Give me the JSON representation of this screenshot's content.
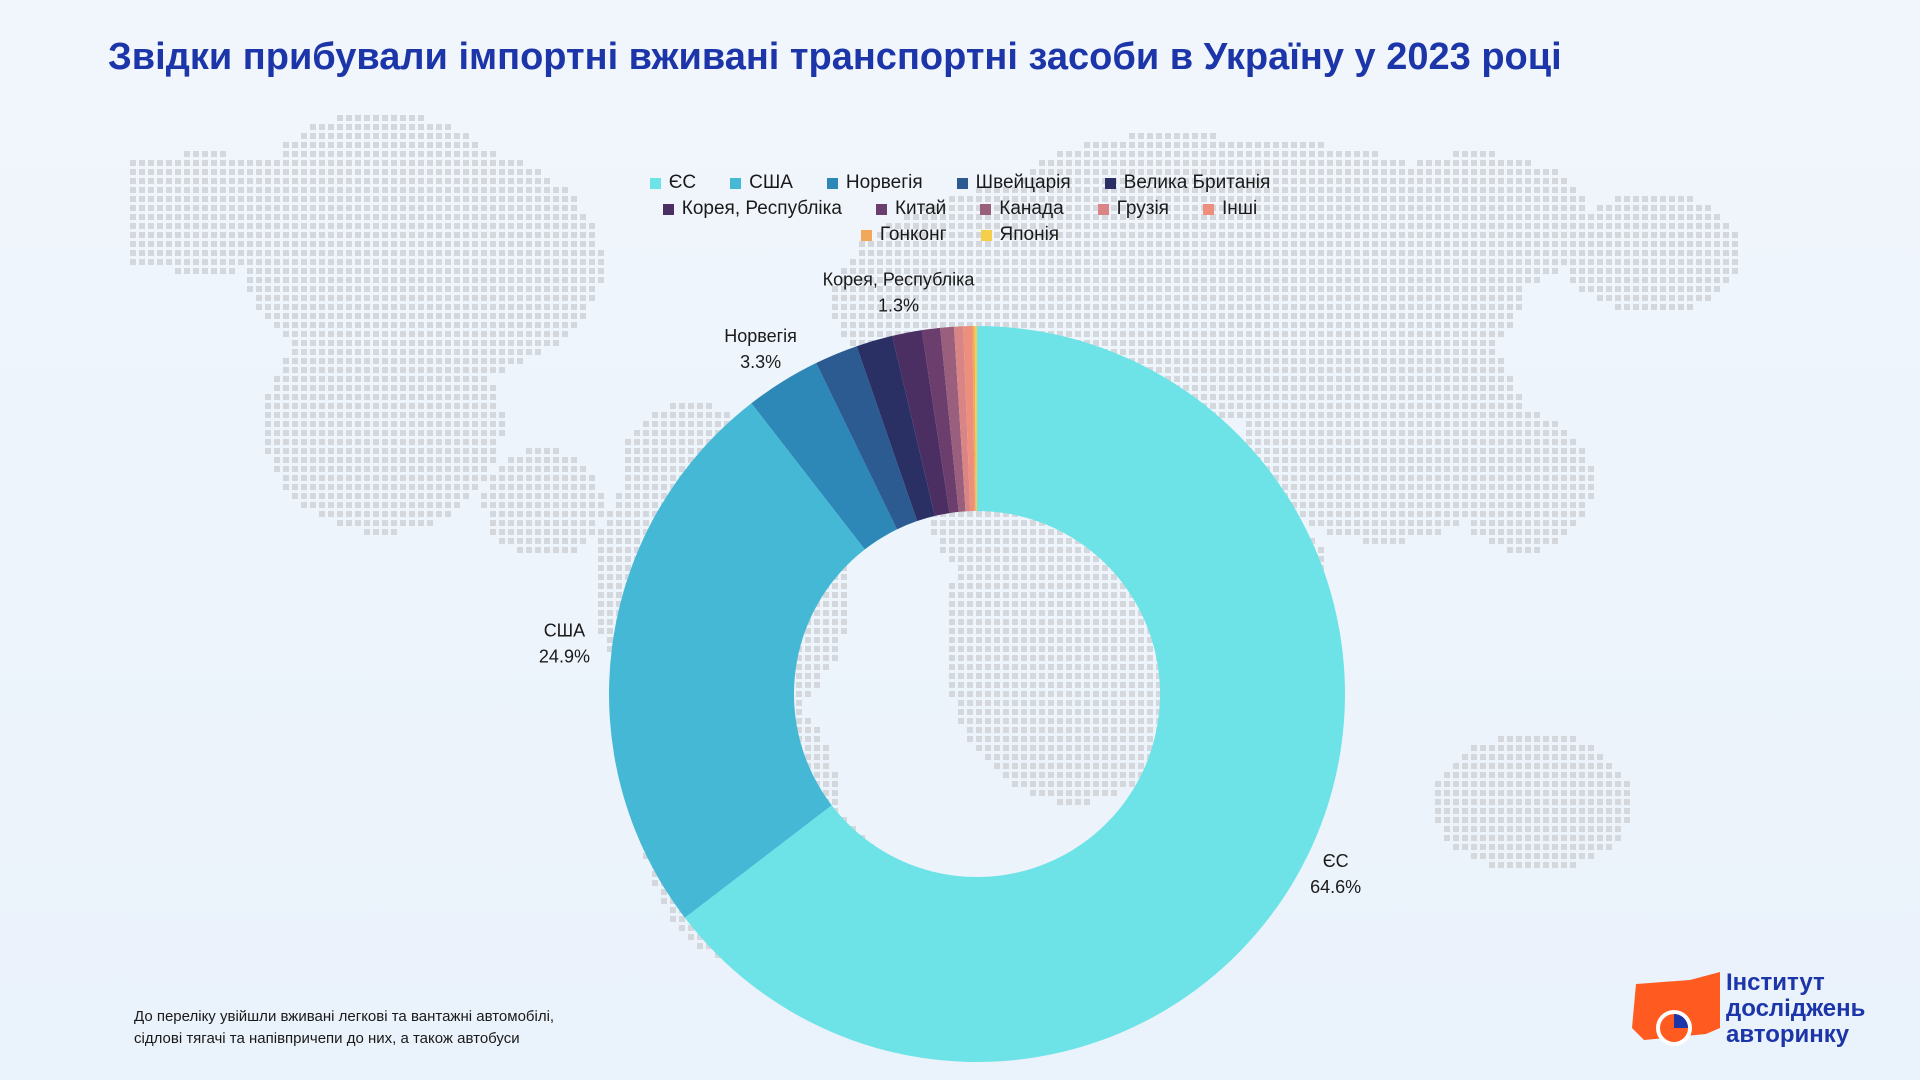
{
  "title": "Звідки прибували імпортні вживані транспортні засоби в Україну у 2023 році",
  "footnote": {
    "line1": "До переліку увійшли вживані легкові та вантажні автомобілі,",
    "line2": "сідлові тягачі та напівпричепи до них, а також автобуси"
  },
  "logo": {
    "line1": "Інститут",
    "line2": "досліджень",
    "line3": "авторинку"
  },
  "chart_data": {
    "type": "pie",
    "subtype": "donut",
    "legend_position": "top",
    "categories": [
      "ЄС",
      "США",
      "Норвегія",
      "Швейцарія",
      "Велика Британія",
      "Корея, Республіка",
      "Китай",
      "Канада",
      "Грузія",
      "Інші",
      "Гонконг",
      "Японія"
    ],
    "values": [
      64.6,
      24.9,
      3.3,
      1.9,
      1.6,
      1.3,
      0.8,
      0.6,
      0.4,
      0.4,
      0.1,
      0.1
    ],
    "colors": [
      "#6de3e7",
      "#45b8d6",
      "#2d88b7",
      "#2b5b90",
      "#2a2f64",
      "#4b2f63",
      "#6b3e6e",
      "#9b5f7e",
      "#d98585",
      "#ee8e7c",
      "#f2a85a",
      "#f6cf4a"
    ],
    "labeled": [
      {
        "name": "ЄС",
        "value_text": "64.6%"
      },
      {
        "name": "США",
        "value_text": "24.9%"
      },
      {
        "name": "Норвегія",
        "value_text": "3.3%"
      },
      {
        "name": "Корея, Республіка",
        "value_text": "1.3%"
      }
    ]
  }
}
